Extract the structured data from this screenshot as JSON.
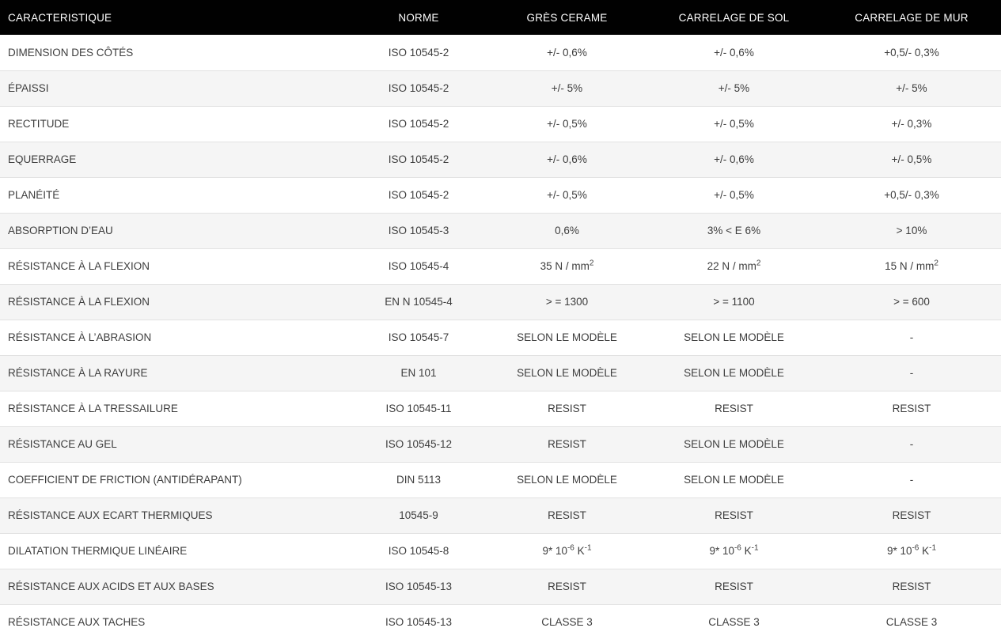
{
  "colors": {
    "header_bg": "#010101",
    "header_text": "#ffffff",
    "row_stripe": "#f5f5f5",
    "row_border": "#e2e2e2",
    "body_text": "#3d3d3d"
  },
  "table": {
    "columns": [
      "CARACTERISTIQUE",
      "NORME",
      "GRÈS CERAME",
      "CARRELAGE DE SOL",
      "CARRELAGE DE MUR"
    ],
    "rows": [
      {
        "caracteristique": "DIMENSION DES CÔTÉS",
        "norme": "ISO 10545-2",
        "gres_cerame": "+/- 0,6%",
        "carrelage_de_sol": "+/- 0,6%",
        "carrelage_de_mur": "+0,5/- 0,3%"
      },
      {
        "caracteristique": "ÉPAISSI",
        "norme": "ISO 10545-2",
        "gres_cerame": "+/- 5%",
        "carrelage_de_sol": "+/- 5%",
        "carrelage_de_mur": "+/- 5%"
      },
      {
        "caracteristique": "RECTITUDE",
        "norme": "ISO 10545-2",
        "gres_cerame": "+/- 0,5%",
        "carrelage_de_sol": "+/- 0,5%",
        "carrelage_de_mur": "+/- 0,3%"
      },
      {
        "caracteristique": "EQUERRAGE",
        "norme": "ISO 10545-2",
        "gres_cerame": "+/- 0,6%",
        "carrelage_de_sol": "+/- 0,6%",
        "carrelage_de_mur": "+/- 0,5%"
      },
      {
        "caracteristique": "PLANÉITÉ",
        "norme": "ISO 10545-2",
        "gres_cerame": "+/- 0,5%",
        "carrelage_de_sol": "+/- 0,5%",
        "carrelage_de_mur": "+0,5/- 0,3%"
      },
      {
        "caracteristique": "ABSORPTION D’EAU",
        "norme": "ISO 10545-3",
        "gres_cerame": "0,6%",
        "carrelage_de_sol": "3% < E 6%",
        "carrelage_de_mur": "> 10%"
      },
      {
        "caracteristique": "RÉSISTANCE À LA FLEXION",
        "norme": "ISO 10545-4",
        "gres_cerame": "35 N / mm^{2}",
        "carrelage_de_sol": "22 N / mm^{2}",
        "carrelage_de_mur": "15 N / mm^{2}"
      },
      {
        "caracteristique": "RÉSISTANCE À LA FLEXION",
        "norme": "EN N 10545-4",
        "gres_cerame": "> = 1300",
        "carrelage_de_sol": "> = 1100",
        "carrelage_de_mur": "> = 600"
      },
      {
        "caracteristique": "RÉSISTANCE À L’ABRASION",
        "norme": "ISO 10545-7",
        "gres_cerame": "SELON LE MODÈLE",
        "carrelage_de_sol": "SELON LE MODÈLE",
        "carrelage_de_mur": "-"
      },
      {
        "caracteristique": "RÉSISTANCE À LA RAYURE",
        "norme": "EN 101",
        "gres_cerame": "SELON LE MODÈLE",
        "carrelage_de_sol": "SELON LE MODÈLE",
        "carrelage_de_mur": "-"
      },
      {
        "caracteristique": "RÉSISTANCE À LA TRESSAILURE",
        "norme": "ISO 10545-11",
        "gres_cerame": "RESIST",
        "carrelage_de_sol": "RESIST",
        "carrelage_de_mur": "RESIST"
      },
      {
        "caracteristique": "RÉSISTANCE AU GEL",
        "norme": "ISO 10545-12",
        "gres_cerame": "RESIST",
        "carrelage_de_sol": "SELON LE MODÈLE",
        "carrelage_de_mur": "-"
      },
      {
        "caracteristique": "COEFFICIENT DE FRICTION (ANTIDÉRAPANT)",
        "norme": "DIN 5113",
        "gres_cerame": "SELON LE MODÈLE",
        "carrelage_de_sol": "SELON LE MODÈLE",
        "carrelage_de_mur": "-"
      },
      {
        "caracteristique": "RÉSISTANCE AUX ECART THERMIQUES",
        "norme": "10545-9",
        "gres_cerame": "RESIST",
        "carrelage_de_sol": "RESIST",
        "carrelage_de_mur": "RESIST"
      },
      {
        "caracteristique": "DILATATION THERMIQUE LINÉAIRE",
        "norme": "ISO 10545-8",
        "gres_cerame": "9* 10^{-6} K^{-1}",
        "carrelage_de_sol": "9* 10^{-6} K^{-1}",
        "carrelage_de_mur": "9* 10^{-6} K^{-1}"
      },
      {
        "caracteristique": "RÉSISTANCE AUX ACIDS ET AUX BASES",
        "norme": "ISO 10545-13",
        "gres_cerame": "RESIST",
        "carrelage_de_sol": "RESIST",
        "carrelage_de_mur": "RESIST"
      },
      {
        "caracteristique": "RÉSISTANCE AUX TACHES",
        "norme": "ISO 10545-13",
        "gres_cerame": "CLASSE 3",
        "carrelage_de_sol": "CLASSE 3",
        "carrelage_de_mur": "CLASSE 3"
      }
    ]
  }
}
